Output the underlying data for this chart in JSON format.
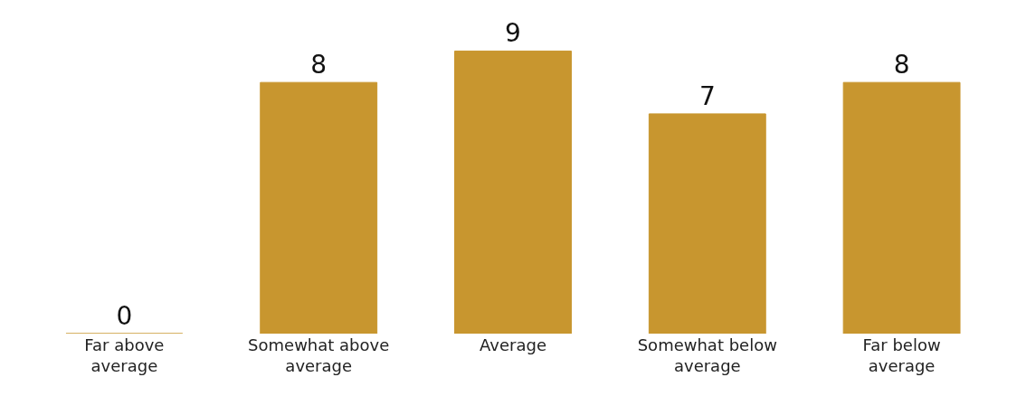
{
  "chart_data": {
    "type": "bar",
    "categories": [
      "Far above average",
      "Somewhat above average",
      "Average",
      "Somewhat below average",
      "Far below average"
    ],
    "values": [
      0,
      8,
      9,
      7,
      8
    ],
    "color": "#c8962f",
    "data_labels": true
  }
}
